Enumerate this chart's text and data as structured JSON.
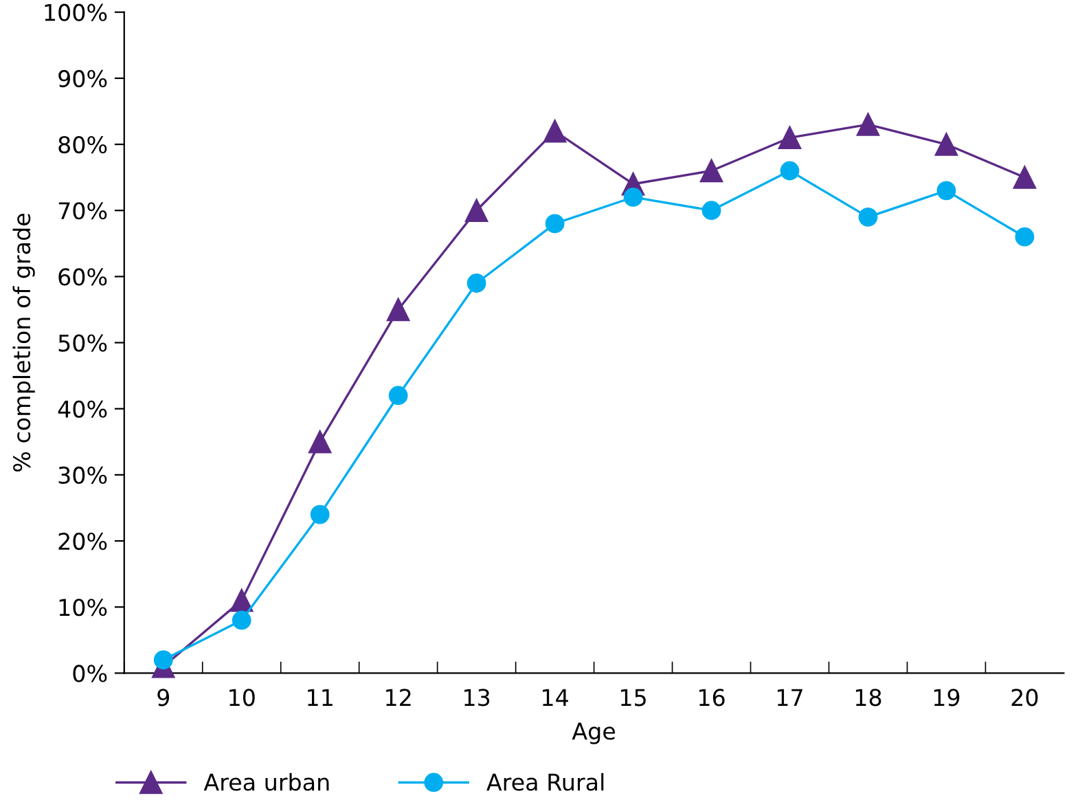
{
  "chart_data": {
    "type": "line",
    "xlabel": "Age",
    "ylabel": "% completion of grade",
    "categories": [
      "9",
      "10",
      "11",
      "12",
      "13",
      "14",
      "15",
      "16",
      "17",
      "18",
      "19",
      "20"
    ],
    "series": [
      {
        "name": "Area urban",
        "color": "#5b2a86",
        "marker": "triangle",
        "values": [
          1,
          11,
          35,
          55,
          70,
          82,
          74,
          76,
          81,
          83,
          80,
          75
        ]
      },
      {
        "name": "Area Rural",
        "color": "#00aeef",
        "marker": "circle",
        "values": [
          2,
          8,
          24,
          42,
          59,
          68,
          72,
          70,
          76,
          69,
          73,
          66
        ]
      }
    ],
    "ylim": [
      0,
      100
    ],
    "yticks": [
      {
        "value": 0,
        "label": "0%"
      },
      {
        "value": 10,
        "label": "10%"
      },
      {
        "value": 20,
        "label": "20%"
      },
      {
        "value": 30,
        "label": "30%"
      },
      {
        "value": 40,
        "label": "40%"
      },
      {
        "value": 50,
        "label": "50%"
      },
      {
        "value": 60,
        "label": "60%"
      },
      {
        "value": 70,
        "label": "70%"
      },
      {
        "value": 80,
        "label": "80%"
      },
      {
        "value": 90,
        "label": "90%"
      },
      {
        "value": 100,
        "label": "100%"
      }
    ],
    "grid": false,
    "legend": "bottom",
    "line_style": "solid"
  }
}
